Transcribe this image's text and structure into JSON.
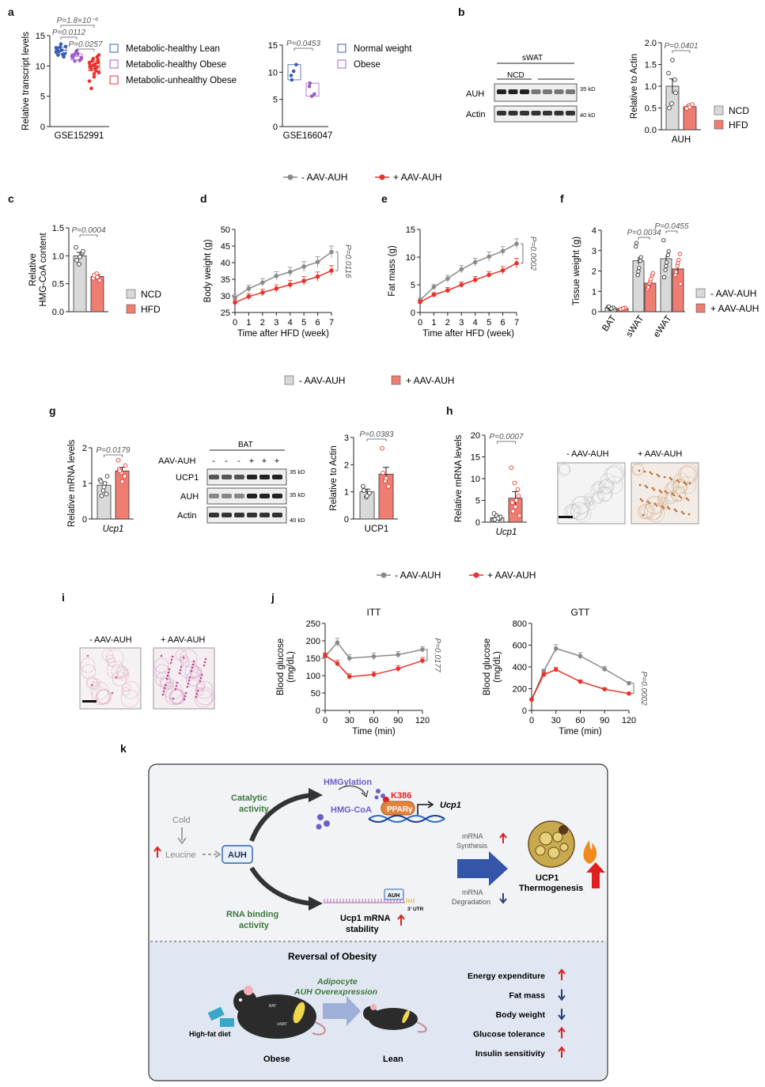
{
  "colors": {
    "gray": "#8a8a8a",
    "red": "#e8322b",
    "lightgray": "#d9d9d9",
    "salmon": "#ef7d72",
    "blue": "#3b5fb0",
    "purple": "#a05cc6",
    "green": "#3c7a3a",
    "navy": "#2d3d7a"
  },
  "panels": {
    "a": "a",
    "b": "b",
    "c": "c",
    "d": "d",
    "e": "e",
    "f": "f",
    "g": "g",
    "h": "h",
    "i": "i",
    "j": "j",
    "k": "k"
  },
  "legend_line": {
    "minus": "- AAV-AUH",
    "plus": "+ AAV-AUH"
  },
  "legend_bar": {
    "minus": "- AAV-AUH",
    "plus": "+ AAV-AUH"
  },
  "blot_b": {
    "header": "sWAT",
    "group": "NCD",
    "rows": [
      "AUH",
      "Actin"
    ],
    "kd": [
      "35 kD",
      "40 kD"
    ]
  },
  "blot_g": {
    "header": "BAT",
    "treat_label": "AAV-AUH",
    "signs": [
      "-",
      "-",
      "-",
      "+",
      "+",
      "+"
    ],
    "rows": [
      "UCP1",
      "AUH",
      "Actin"
    ],
    "kd": [
      "35 kD",
      "35 kD",
      "40 kD"
    ]
  },
  "images": {
    "h_minus": "- AAV-AUH",
    "h_plus": "+ AAV-AUH",
    "i_minus": "- AAV-AUH",
    "i_plus": "+ AAV-AUH"
  },
  "chart_data": [
    {
      "panel": "a-left",
      "type": "scatter",
      "ylabel": "Relative transcript levels",
      "xlabel": "GSE152991",
      "ylim": [
        0,
        15
      ],
      "series": [
        {
          "name": "Metabolic-healthy Lean",
          "values": [
            12.3,
            13.1,
            11.5,
            12.8,
            13.6,
            12.0,
            11.8,
            12.6,
            13.2,
            12.4,
            11.9,
            13.0
          ]
        },
        {
          "name": "Metabolic-healthy Obese",
          "values": [
            11.6,
            12.2,
            10.9,
            11.4,
            12.5,
            11.0,
            11.8,
            12.0,
            11.3,
            10.8
          ]
        },
        {
          "name": "Metabolic-unhealthy Obese",
          "values": [
            10.5,
            11.2,
            9.8,
            10.0,
            8.7,
            11.0,
            9.5,
            10.3,
            8.9,
            10.8,
            9.2,
            7.5,
            10.1,
            11.5,
            9.9,
            8.2,
            10.6,
            6.3,
            9.6,
            11.8
          ]
        }
      ],
      "pvalues": [
        "P=1.8×10⁻⁶",
        "P=0.0112",
        "P=0.0257"
      ],
      "yticks": [
        "0",
        "5",
        "10",
        "15"
      ]
    },
    {
      "panel": "a-right",
      "type": "scatter",
      "xlabel": "GSE166047",
      "ylim": [
        0,
        15
      ],
      "series": [
        {
          "name": "Normal weight",
          "values": [
            9.4,
            10.2,
            11.4,
            8.6
          ]
        },
        {
          "name": "Obese",
          "values": [
            7.4,
            5.6,
            6.0,
            8.0
          ]
        }
      ],
      "pvalues": [
        "P=0.0453"
      ],
      "yticks": [
        "0",
        "5",
        "10",
        "15"
      ]
    },
    {
      "panel": "b",
      "type": "bar",
      "ylabel": "Relative to Actin",
      "xlabel": "AUH",
      "ylim": [
        0,
        2.0
      ],
      "series": [
        {
          "name": "NCD",
          "mean": 1.0,
          "sem": 0.17,
          "points": [
            1.3,
            0.6,
            1.15,
            0.5,
            1.6,
            0.85
          ]
        },
        {
          "name": "HFD",
          "mean": 0.53,
          "sem": 0.04,
          "points": [
            0.5,
            0.56,
            0.58,
            0.49,
            0.52
          ]
        }
      ],
      "pvalues": [
        "P=0.0401"
      ],
      "yticks": [
        "0.0",
        "0.5",
        "1.0",
        "1.5",
        "2.0"
      ]
    },
    {
      "panel": "c",
      "type": "bar",
      "ylabel": "Relative HMG-CoA content",
      "ylim": [
        0,
        1.5
      ],
      "series": [
        {
          "name": "NCD",
          "mean": 1.0,
          "sem": 0.06,
          "points": [
            1.15,
            0.85,
            1.05,
            0.92,
            0.98,
            1.08
          ]
        },
        {
          "name": "HFD",
          "mean": 0.63,
          "sem": 0.03,
          "points": [
            0.6,
            0.68,
            0.56,
            0.65,
            0.62
          ]
        }
      ],
      "pvalues": [
        "P=0.0004"
      ],
      "yticks": [
        "0.0",
        "0.5",
        "1.0",
        "1.5"
      ]
    },
    {
      "panel": "d",
      "type": "line",
      "ylabel": "Body weight (g)",
      "xlabel": "Time after HFD (week)",
      "ylim": [
        25,
        50
      ],
      "x": [
        0,
        1,
        2,
        3,
        4,
        5,
        6,
        7
      ],
      "series": [
        {
          "name": "- AAV-AUH",
          "values": [
            29.5,
            32.2,
            34.0,
            36.0,
            37.2,
            38.8,
            40.2,
            43.2
          ],
          "err": [
            1.0,
            1.0,
            1.2,
            1.3,
            1.4,
            1.5,
            1.6,
            1.8
          ]
        },
        {
          "name": "+ AAV-AUH",
          "values": [
            28.0,
            29.8,
            31.0,
            32.2,
            33.4,
            34.5,
            35.8,
            37.6
          ],
          "err": [
            0.8,
            0.9,
            1.0,
            1.1,
            1.2,
            1.3,
            1.4,
            1.5
          ]
        }
      ],
      "pvalues": [
        "P=0.0116"
      ],
      "yticks": [
        "25",
        "30",
        "35",
        "40",
        "45",
        "50"
      ],
      "xticks": [
        "0",
        "1",
        "2",
        "3",
        "4",
        "5",
        "6",
        "7"
      ]
    },
    {
      "panel": "e",
      "type": "line",
      "ylabel": "Fat mass (g)",
      "xlabel": "Time after HFD (week)",
      "ylim": [
        0,
        15
      ],
      "x": [
        0,
        1,
        2,
        3,
        4,
        5,
        6,
        7
      ],
      "series": [
        {
          "name": "- AAV-AUH",
          "values": [
            2.2,
            4.6,
            6.1,
            7.8,
            9.1,
            10.1,
            11.1,
            12.4
          ],
          "err": [
            0.4,
            0.5,
            0.6,
            0.7,
            0.7,
            0.8,
            0.8,
            0.9
          ]
        },
        {
          "name": "+ AAV-AUH",
          "values": [
            1.9,
            3.2,
            4.0,
            5.0,
            5.9,
            6.8,
            7.6,
            8.9
          ],
          "err": [
            0.3,
            0.4,
            0.5,
            0.5,
            0.6,
            0.6,
            0.7,
            0.9
          ]
        }
      ],
      "pvalues": [
        "P=0.0002"
      ],
      "yticks": [
        "0",
        "5",
        "10",
        "15"
      ],
      "xticks": [
        "0",
        "1",
        "2",
        "3",
        "4",
        "5",
        "6",
        "7"
      ]
    },
    {
      "panel": "f",
      "type": "bar",
      "ylabel": "Tissue weight (g)",
      "ylim": [
        0,
        4
      ],
      "categories": [
        "BAT",
        "sWAT",
        "eWAT"
      ],
      "series": [
        {
          "name": "- AAV-AUH",
          "means": [
            0.2,
            2.5,
            2.6
          ],
          "sem": [
            0.05,
            0.18,
            0.15
          ]
        },
        {
          "name": "+ AAV-AUH",
          "means": [
            0.15,
            1.4,
            2.1
          ],
          "sem": [
            0.04,
            0.22,
            0.25
          ]
        }
      ],
      "pvalues": [
        "P=0.0034",
        "P=0.0455"
      ],
      "yticks": [
        "0",
        "1",
        "2",
        "3",
        "4"
      ]
    },
    {
      "panel": "g-left",
      "type": "bar",
      "ylabel": "Relative mRNA levels",
      "xlabel": "Ucp1",
      "ylim": [
        0,
        2
      ],
      "series": [
        {
          "name": "- AAV-AUH",
          "mean": 0.95,
          "sem": 0.08,
          "points": [
            1.1,
            0.8,
            0.7,
            1.05,
            0.9,
            1.2,
            0.65,
            1.0
          ]
        },
        {
          "name": "+ AAV-AUH",
          "mean": 1.35,
          "sem": 0.1,
          "points": [
            1.65,
            1.3,
            1.2,
            1.4,
            1.05,
            1.5,
            1.35
          ]
        }
      ],
      "pvalues": [
        "P=0.0179"
      ],
      "yticks": [
        "0",
        "1",
        "2"
      ]
    },
    {
      "panel": "g-right",
      "type": "bar",
      "ylabel": "Relative to Actin",
      "xlabel": "UCP1",
      "ylim": [
        0,
        3
      ],
      "series": [
        {
          "name": "- AAV-AUH",
          "mean": 1.0,
          "sem": 0.1,
          "points": [
            1.2,
            0.8,
            0.95,
            1.05,
            0.85
          ]
        },
        {
          "name": "+ AAV-AUH",
          "mean": 1.65,
          "sem": 0.25,
          "points": [
            2.6,
            1.4,
            1.2,
            1.7,
            1.5
          ]
        }
      ],
      "pvalues": [
        "P=0.0383"
      ],
      "yticks": [
        "0",
        "1",
        "2",
        "3"
      ]
    },
    {
      "panel": "h",
      "type": "bar",
      "ylabel": "Relative mRNA levels",
      "xlabel": "Ucp1",
      "ylim": [
        0,
        20
      ],
      "series": [
        {
          "name": "- AAV-AUH",
          "mean": 1.0,
          "sem": 0.3,
          "points": [
            0.5,
            1.5,
            0.8,
            2.0,
            0.3,
            1.2,
            0.6,
            0.9
          ]
        },
        {
          "name": "+ AAV-AUH",
          "mean": 5.5,
          "sem": 1.5,
          "points": [
            12.5,
            9.0,
            7.5,
            4.5,
            3.5,
            6.0,
            2.5,
            5.0,
            1.5
          ]
        }
      ],
      "pvalues": [
        "P=0.0007"
      ],
      "yticks": [
        "0",
        "5",
        "10",
        "15",
        "20"
      ]
    },
    {
      "panel": "j-itt",
      "type": "line",
      "title": "ITT",
      "ylabel": "Blood glucose (mg/dL)",
      "xlabel": "Time (min)",
      "ylim": [
        0,
        250
      ],
      "x": [
        0,
        15,
        30,
        60,
        90,
        120
      ],
      "series": [
        {
          "name": "- AAV-AUH",
          "values": [
            155,
            195,
            150,
            155,
            160,
            175
          ],
          "err": [
            8,
            12,
            10,
            10,
            9,
            8
          ]
        },
        {
          "name": "+ AAV-AUH",
          "values": [
            158,
            135,
            97,
            103,
            120,
            143
          ],
          "err": [
            7,
            9,
            8,
            8,
            9,
            9
          ]
        }
      ],
      "pvalues": [
        "P=0.0177"
      ],
      "yticks": [
        "0",
        "50",
        "100",
        "150",
        "200",
        "250"
      ],
      "xticks": [
        "0",
        "30",
        "60",
        "90",
        "120"
      ]
    },
    {
      "panel": "j-gtt",
      "type": "line",
      "title": "GTT",
      "ylabel": "Blood glucose (mg/dL)",
      "xlabel": "Time (min)",
      "ylim": [
        0,
        800
      ],
      "x": [
        0,
        15,
        30,
        60,
        90,
        120
      ],
      "series": [
        {
          "name": "- AAV-AUH",
          "values": [
            100,
            360,
            570,
            500,
            380,
            250
          ],
          "err": [
            10,
            20,
            35,
            30,
            25,
            15
          ]
        },
        {
          "name": "+ AAV-AUH",
          "values": [
            100,
            330,
            375,
            265,
            195,
            155
          ],
          "err": [
            10,
            18,
            20,
            15,
            12,
            10
          ]
        }
      ],
      "pvalues": [
        "P=0.0002"
      ],
      "yticks": [
        "0",
        "200",
        "400",
        "600",
        "800"
      ],
      "xticks": [
        "0",
        "30",
        "60",
        "90",
        "120"
      ]
    }
  ],
  "schematic": {
    "cold": "Cold",
    "leucine": "Leucine",
    "auh": "AUH",
    "catalytic": [
      "Catalytic",
      "activity"
    ],
    "hmgylation": "HMGylation",
    "hmgcoa": "HMG-CoA",
    "k386": "K386",
    "ppar": "PPARγ",
    "ucp1": "Ucp1",
    "rna_binding": [
      "RNA binding",
      "activity"
    ],
    "mrna_stability": [
      "Ucp1 mRNA",
      "stability"
    ],
    "utr": "3' UTR",
    "mrna_synth": [
      "mRNA",
      "Synthesis"
    ],
    "mrna_degr": [
      "mRNA",
      "Degradation"
    ],
    "thermo": [
      "UCP1",
      "Thermogenesis"
    ],
    "reversal": "Reversal of Obesity",
    "aav": [
      "Adipocyte",
      "AUH Overexpression"
    ],
    "hfd": "High-fat diet",
    "obese": "Obese",
    "lean": "Lean",
    "bat_tag": "BAT",
    "swat_tag": "sWAT",
    "outcomes": [
      "Energy expenditure",
      "Fat mass",
      "Body weight",
      "Glucose tolerance",
      "Insulin sensitivity"
    ],
    "directions": [
      "up",
      "down",
      "down",
      "up",
      "up"
    ]
  }
}
